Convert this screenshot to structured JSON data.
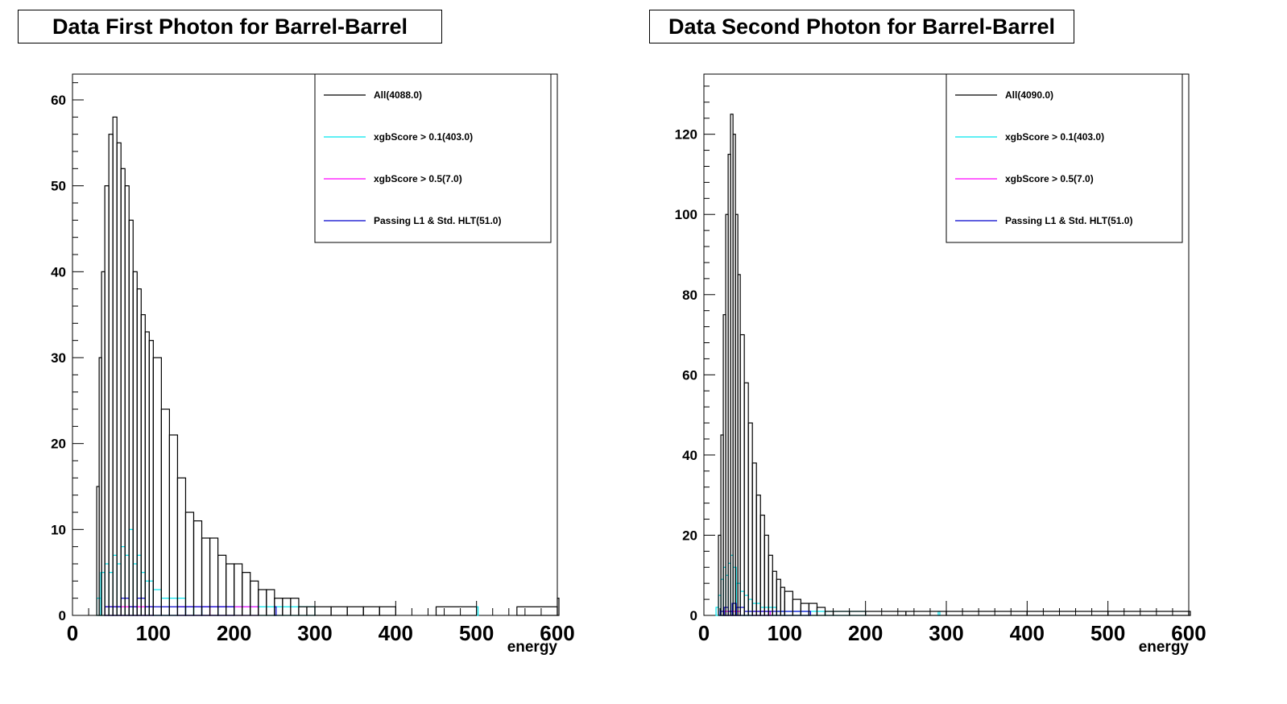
{
  "colors": {
    "all": "#000000",
    "xgb01": "#00e5ee",
    "xgb05": "#ff00ff",
    "hlt": "#0000cc"
  },
  "chart_data": [
    {
      "type": "histogram",
      "title": "Data First Photon for Barrel-Barrel",
      "xlabel": "energy",
      "ylabel": "",
      "xlim": [
        0,
        600
      ],
      "ylim": [
        0,
        63
      ],
      "x_ticks": [
        0,
        100,
        200,
        300,
        400,
        500,
        600
      ],
      "y_ticks": [
        0,
        10,
        20,
        30,
        40,
        50,
        60
      ],
      "legend_position": "top-right",
      "series": [
        {
          "name": "All(4088.0)",
          "color": "#000000",
          "x": [
            25,
            30,
            33,
            36,
            40,
            45,
            50,
            55,
            60,
            65,
            70,
            75,
            80,
            85,
            90,
            95,
            100,
            110,
            120,
            130,
            140,
            150,
            160,
            170,
            180,
            190,
            200,
            210,
            220,
            230,
            240,
            250,
            260,
            270,
            280,
            290,
            300,
            320,
            340,
            360,
            380,
            400,
            450,
            500,
            550,
            600
          ],
          "y": [
            0,
            15,
            30,
            40,
            50,
            56,
            58,
            55,
            52,
            50,
            46,
            40,
            38,
            35,
            33,
            32,
            30,
            24,
            21,
            16,
            12,
            11,
            9,
            9,
            7,
            6,
            6,
            5,
            4,
            3,
            3,
            2,
            2,
            2,
            1,
            1,
            1,
            1,
            1,
            1,
            1,
            0,
            1,
            0,
            1,
            2
          ]
        },
        {
          "name": "xgbScore > 0.1(403.0)",
          "color": "#00e5ee",
          "x": [
            25,
            30,
            35,
            40,
            45,
            50,
            55,
            60,
            65,
            70,
            75,
            80,
            85,
            90,
            95,
            100,
            110,
            120,
            130,
            140,
            150,
            160,
            180,
            200,
            250,
            300,
            400,
            500
          ],
          "y": [
            0,
            2,
            5,
            6,
            5,
            7,
            6,
            8,
            7,
            10,
            6,
            7,
            5,
            4,
            4,
            3,
            2,
            2,
            2,
            1,
            1,
            1,
            1,
            1,
            1,
            0,
            0,
            1
          ]
        },
        {
          "name": "xgbScore > 0.5(7.0)",
          "color": "#ff00ff",
          "x": [
            40,
            60,
            80,
            100,
            130,
            170,
            230
          ],
          "y": [
            1,
            1,
            1,
            0,
            1,
            1,
            0
          ]
        },
        {
          "name": "Passing L1 & Std. HLT(51.0)",
          "color": "#0000cc",
          "x": [
            40,
            50,
            60,
            70,
            80,
            90,
            100,
            110,
            120,
            140,
            160,
            180,
            200,
            250
          ],
          "y": [
            1,
            1,
            2,
            1,
            2,
            1,
            1,
            1,
            1,
            1,
            1,
            1,
            0,
            1
          ]
        }
      ]
    },
    {
      "type": "histogram",
      "title": "Data Second Photon for Barrel-Barrel",
      "xlabel": "energy",
      "ylabel": "",
      "xlim": [
        0,
        600
      ],
      "ylim": [
        0,
        135
      ],
      "x_ticks": [
        0,
        100,
        200,
        300,
        400,
        500,
        600
      ],
      "y_ticks": [
        0,
        20,
        40,
        60,
        80,
        100,
        120
      ],
      "legend_position": "top-right",
      "series": [
        {
          "name": "All(4090.0)",
          "color": "#000000",
          "x": [
            15,
            18,
            21,
            24,
            27,
            30,
            33,
            36,
            39,
            42,
            45,
            50,
            55,
            60,
            65,
            70,
            75,
            80,
            85,
            90,
            95,
            100,
            110,
            120,
            130,
            140,
            150,
            160,
            180,
            200,
            250,
            300,
            400,
            500,
            600
          ],
          "y": [
            0,
            20,
            45,
            75,
            100,
            115,
            125,
            120,
            100,
            85,
            70,
            58,
            48,
            38,
            30,
            25,
            20,
            15,
            11,
            9,
            7,
            6,
            4,
            3,
            3,
            2,
            1,
            1,
            1,
            1,
            1,
            1,
            1,
            1,
            1
          ]
        },
        {
          "name": "xgbScore > 0.1(403.0)",
          "color": "#00e5ee",
          "x": [
            15,
            18,
            21,
            24,
            27,
            30,
            33,
            36,
            40,
            45,
            50,
            55,
            60,
            70,
            80,
            90,
            100,
            120,
            150,
            200,
            290
          ],
          "y": [
            2,
            5,
            9,
            12,
            10,
            13,
            15,
            12,
            8,
            6,
            5,
            4,
            3,
            2,
            2,
            1,
            1,
            1,
            1,
            0,
            1
          ]
        },
        {
          "name": "xgbScore > 0.5(7.0)",
          "color": "#ff00ff",
          "x": [
            25,
            35,
            45,
            60,
            80
          ],
          "y": [
            1,
            1,
            0,
            1,
            1
          ]
        },
        {
          "name": "Passing L1 & Std. HLT(51.0)",
          "color": "#0000cc",
          "x": [
            20,
            25,
            30,
            35,
            40,
            45,
            50,
            60,
            70,
            80,
            100,
            130
          ],
          "y": [
            1,
            2,
            1,
            3,
            2,
            2,
            1,
            1,
            1,
            1,
            1,
            1
          ]
        }
      ]
    }
  ]
}
